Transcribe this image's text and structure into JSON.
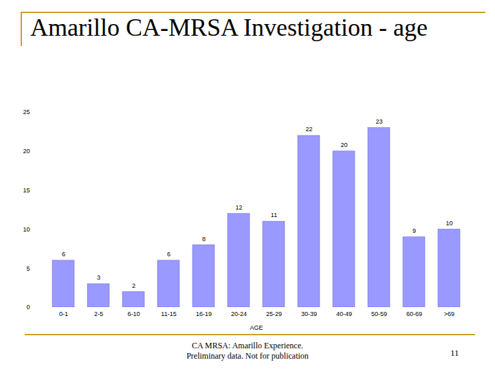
{
  "chart_data": {
    "type": "bar",
    "title": "Amarillo CA-MRSA Investigation - age",
    "x_label": "AGE",
    "categories": [
      "0-1",
      "2-5",
      "6-10",
      "11-15",
      "16-19",
      "20-24",
      "25-29",
      "30-39",
      "40-49",
      "50-59",
      "60-69",
      ">69"
    ],
    "values": [
      6,
      3,
      2,
      6,
      8,
      12,
      11,
      22,
      20,
      23,
      9,
      10
    ],
    "color": "#9999ff",
    "ylim": [
      0,
      25
    ],
    "yticks": [
      0,
      5,
      10,
      15,
      20,
      25
    ],
    "grid": false,
    "data_labels": true
  },
  "footer": {
    "lines": [
      "CA MRSA: Amarillo Experience.",
      "Preliminary data. Not for publication"
    ],
    "page_number": 11
  }
}
